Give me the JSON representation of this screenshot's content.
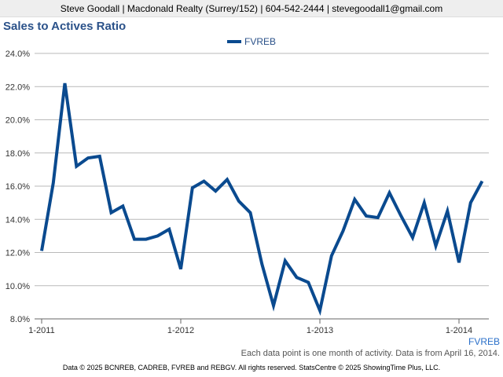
{
  "header": {
    "contact": "Steve Goodall | Macdonald Realty (Surrey/152) | 604-542-2444 | stevegoodall1@gmail.com"
  },
  "colors": {
    "series": "#0a4a8f",
    "title": "#2a5189",
    "grid": "#b9b9b9"
  },
  "footer": {
    "series_tag": "FVREB",
    "note": "Each data point is one month of activity. Data is from April 16, 2014.",
    "copyright": "Data © 2025 BCNREB, CADREB, FVREB and REBGV. All rights reserved. StatsCentre © 2025 ShowingTime Plus, LLC."
  },
  "chart_data": {
    "type": "line",
    "title": "Sales to Actives Ratio",
    "legend": "top-center",
    "grid": true,
    "ylim": [
      8.0,
      24.0
    ],
    "y_ticks": [
      "24.0%",
      "22.0%",
      "20.0%",
      "18.0%",
      "16.0%",
      "14.0%",
      "12.0%",
      "10.0%",
      "8.0%"
    ],
    "y_tick_values": [
      24,
      22,
      20,
      18,
      16,
      14,
      12,
      10,
      8
    ],
    "x_ticks": [
      "1-2011",
      "1-2012",
      "1-2013",
      "1-2014"
    ],
    "x_tick_months": [
      0,
      12,
      24,
      36
    ],
    "x_range_months": [
      0,
      38
    ],
    "x": [
      "2011-01",
      "2011-02",
      "2011-03",
      "2011-04",
      "2011-05",
      "2011-06",
      "2011-07",
      "2011-08",
      "2011-09",
      "2011-10",
      "2011-11",
      "2011-12",
      "2012-01",
      "2012-02",
      "2012-03",
      "2012-04",
      "2012-05",
      "2012-06",
      "2012-07",
      "2012-08",
      "2012-09",
      "2012-10",
      "2012-11",
      "2012-12",
      "2013-01",
      "2013-02",
      "2013-03",
      "2013-04",
      "2013-05",
      "2013-06",
      "2013-07",
      "2013-08",
      "2013-09",
      "2013-10",
      "2013-11",
      "2013-12",
      "2014-01",
      "2014-02",
      "2014-03"
    ],
    "series": [
      {
        "name": "FVREB",
        "values": [
          12.1,
          16.2,
          22.2,
          17.2,
          17.7,
          17.8,
          14.4,
          14.8,
          12.8,
          12.8,
          13.0,
          13.4,
          11.0,
          15.9,
          16.3,
          15.7,
          16.4,
          15.1,
          14.4,
          11.3,
          8.8,
          11.5,
          10.5,
          10.2,
          8.5,
          11.8,
          13.3,
          15.2,
          14.2,
          14.1,
          15.6,
          14.2,
          12.9,
          15.0,
          12.4,
          14.5,
          11.4,
          15.0,
          16.3
        ]
      }
    ]
  }
}
